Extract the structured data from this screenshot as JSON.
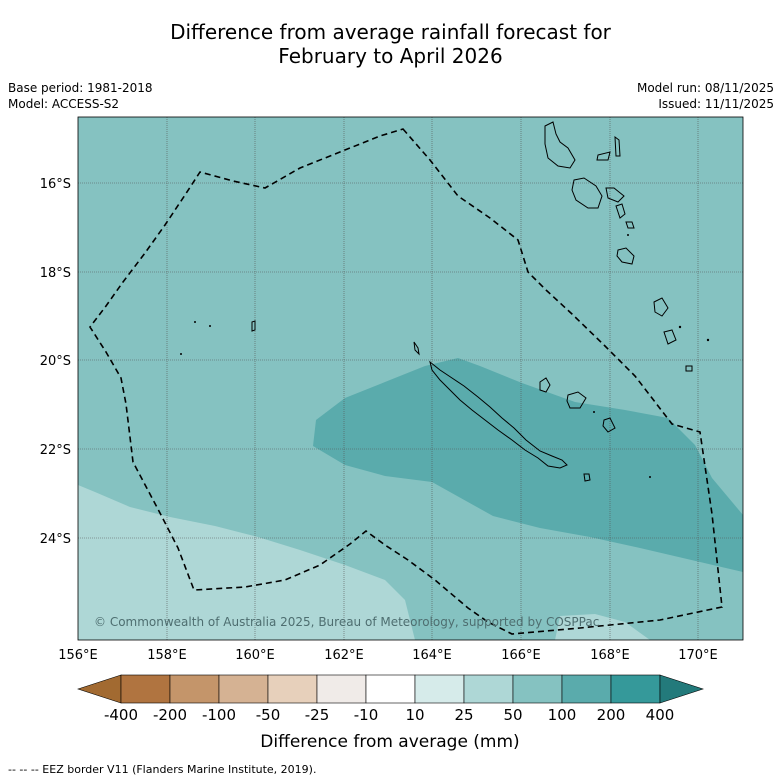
{
  "title": {
    "line1": "Difference from average rainfall forecast for",
    "line2": "February to April 2026"
  },
  "meta": {
    "base_period": "Base period: 1981-2018",
    "model": "Model: ACCESS-S2",
    "model_run": "Model run: 08/11/2025",
    "issued": "Issued: 11/11/2025"
  },
  "map": {
    "lat_labels": [
      "16°S",
      "18°S",
      "20°S",
      "22°S",
      "24°S"
    ],
    "lon_labels": [
      "156°E",
      "158°E",
      "160°E",
      "162°E",
      "164°E",
      "166°E",
      "168°E",
      "170°E"
    ],
    "copyright": "© Commonwealth of Australia 2025, Bureau of Meteorology, supported by COSPPac",
    "colors": {
      "lvl_25_50": "#aed7d6",
      "lvl_50_100": "#85c2c1",
      "lvl_100_200": "#5aabac"
    }
  },
  "colorbar": {
    "labels": [
      "-400",
      "-200",
      "-100",
      "-50",
      "-25",
      "-10",
      "10",
      "25",
      "50",
      "100",
      "200",
      "400"
    ],
    "colors": [
      "#a26a31",
      "#b07440",
      "#c4956a",
      "#d5b293",
      "#e7d0bb",
      "#f0ebe8",
      "#ffffff",
      "#d6ebea",
      "#aed7d6",
      "#85c2c1",
      "#5aabac",
      "#35999a",
      "#237a7b"
    ],
    "title": "Difference from average (mm)"
  },
  "footer": "--  --  -- EEZ border V11 (Flanders Marine Institute, 2019)."
}
